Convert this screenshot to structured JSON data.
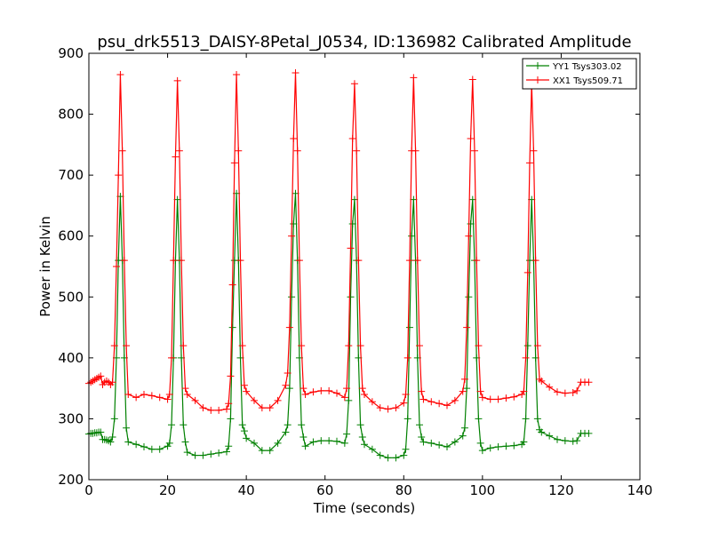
{
  "chart_data": {
    "type": "line",
    "title": "psu_drk5513_DAISY-8Petal_J0534, ID:136982 Calibrated Amplitude",
    "xlabel": "Time (seconds)",
    "ylabel": "Power in Kelvin",
    "xlim": [
      0,
      140
    ],
    "ylim": [
      200,
      900
    ],
    "xticks": [
      0,
      20,
      40,
      60,
      80,
      100,
      120,
      140
    ],
    "yticks": [
      200,
      300,
      400,
      500,
      600,
      700,
      800,
      900
    ],
    "marker": "+",
    "grid": false,
    "legend_position": "top-right",
    "series": [
      {
        "name": "YY1 Tsys303.02",
        "color": "#008000",
        "x": [
          0,
          0.5,
          1,
          1.5,
          2,
          2.5,
          3,
          3.5,
          4,
          4.5,
          5,
          5.5,
          6,
          6.5,
          7,
          7.5,
          8,
          8.5,
          9,
          9.5,
          10,
          12,
          14,
          16,
          18,
          20,
          20.5,
          21,
          21.5,
          22,
          22.5,
          23,
          23.5,
          24,
          24.5,
          25,
          27,
          29,
          31,
          33,
          35,
          35.5,
          36,
          36.5,
          37,
          37.5,
          38,
          38.5,
          39,
          39.5,
          40,
          42,
          44,
          46,
          48,
          50,
          50.5,
          51,
          51.5,
          52,
          52.5,
          53,
          53.5,
          54,
          54.5,
          55,
          57,
          59,
          61,
          63,
          65,
          65.5,
          66,
          66.5,
          67,
          67.5,
          68,
          68.5,
          69,
          69.5,
          70,
          72,
          74,
          76,
          78,
          80,
          80.5,
          81,
          81.5,
          82,
          82.5,
          83,
          83.5,
          84,
          84.5,
          85,
          87,
          89,
          91,
          93,
          95,
          95.5,
          96,
          96.5,
          97,
          97.5,
          98,
          98.5,
          99,
          99.5,
          100,
          102,
          104,
          106,
          108,
          110,
          110.5,
          111,
          111.5,
          112,
          112.5,
          113,
          113.5,
          114,
          114.5,
          115,
          117,
          119,
          121,
          123,
          124,
          125,
          126,
          127
        ],
        "values": [
          275,
          276,
          276,
          277,
          277,
          278,
          278,
          266,
          266,
          265,
          264,
          262,
          270,
          300,
          400,
          560,
          665,
          560,
          400,
          285,
          262,
          258,
          254,
          250,
          250,
          255,
          260,
          290,
          400,
          560,
          660,
          560,
          400,
          290,
          262,
          245,
          240,
          240,
          242,
          244,
          246,
          255,
          300,
          450,
          560,
          670,
          560,
          400,
          290,
          280,
          268,
          260,
          248,
          248,
          260,
          278,
          290,
          350,
          500,
          620,
          670,
          560,
          400,
          290,
          270,
          255,
          262,
          264,
          264,
          263,
          260,
          275,
          330,
          500,
          620,
          660,
          560,
          400,
          290,
          270,
          258,
          250,
          240,
          236,
          236,
          240,
          250,
          300,
          450,
          600,
          660,
          560,
          400,
          290,
          270,
          262,
          260,
          257,
          254,
          262,
          272,
          285,
          350,
          500,
          620,
          660,
          560,
          400,
          300,
          260,
          248,
          252,
          254,
          255,
          256,
          258,
          262,
          300,
          420,
          560,
          660,
          560,
          400,
          300,
          282,
          278,
          272,
          266,
          264,
          263,
          264,
          276,
          276,
          276
        ]
      },
      {
        "name": "XX1 Tsys509.71",
        "color": "#ff0000",
        "x": [
          0,
          0.5,
          1,
          1.5,
          2,
          2.5,
          3,
          3.5,
          4,
          4.5,
          5,
          5.5,
          6,
          6.5,
          7,
          7.5,
          8,
          8.5,
          9,
          9.5,
          10,
          12,
          14,
          16,
          18,
          20,
          20.5,
          21,
          21.5,
          22,
          22.5,
          23,
          23.5,
          24,
          24.5,
          25,
          27,
          29,
          31,
          33,
          35,
          35.5,
          36,
          36.5,
          37,
          37.5,
          38,
          38.5,
          39,
          39.5,
          40,
          42,
          44,
          46,
          48,
          50,
          50.5,
          51,
          51.5,
          52,
          52.5,
          53,
          53.5,
          54,
          54.5,
          55,
          57,
          59,
          61,
          63,
          65,
          65.5,
          66,
          66.5,
          67,
          67.5,
          68,
          68.5,
          69,
          69.5,
          70,
          72,
          74,
          76,
          78,
          80,
          80.5,
          81,
          81.5,
          82,
          82.5,
          83,
          83.5,
          84,
          84.5,
          85,
          87,
          89,
          91,
          93,
          95,
          95.5,
          96,
          96.5,
          97,
          97.5,
          98,
          98.5,
          99,
          99.5,
          100,
          102,
          104,
          106,
          108,
          110,
          110.5,
          111,
          111.5,
          112,
          112.5,
          113,
          113.5,
          114,
          114.5,
          115,
          117,
          119,
          121,
          123,
          124,
          125,
          126,
          127
        ],
        "values": [
          358,
          360,
          362,
          364,
          366,
          368,
          370,
          356,
          360,
          362,
          360,
          356,
          360,
          420,
          550,
          700,
          865,
          740,
          560,
          420,
          340,
          335,
          340,
          338,
          335,
          332,
          340,
          400,
          560,
          730,
          855,
          740,
          560,
          420,
          350,
          340,
          330,
          318,
          314,
          314,
          316,
          325,
          370,
          520,
          720,
          865,
          740,
          560,
          420,
          355,
          345,
          330,
          318,
          318,
          330,
          355,
          375,
          450,
          600,
          760,
          868,
          740,
          560,
          420,
          350,
          340,
          344,
          346,
          346,
          342,
          335,
          350,
          420,
          580,
          760,
          850,
          740,
          560,
          420,
          350,
          340,
          328,
          318,
          316,
          318,
          326,
          340,
          400,
          560,
          740,
          860,
          740,
          560,
          420,
          345,
          332,
          328,
          325,
          322,
          330,
          345,
          365,
          450,
          600,
          760,
          857,
          740,
          560,
          420,
          345,
          335,
          332,
          332,
          334,
          336,
          340,
          345,
          400,
          540,
          720,
          850,
          740,
          560,
          420,
          365,
          362,
          352,
          344,
          342,
          343,
          346,
          360,
          360,
          360
        ]
      }
    ]
  }
}
